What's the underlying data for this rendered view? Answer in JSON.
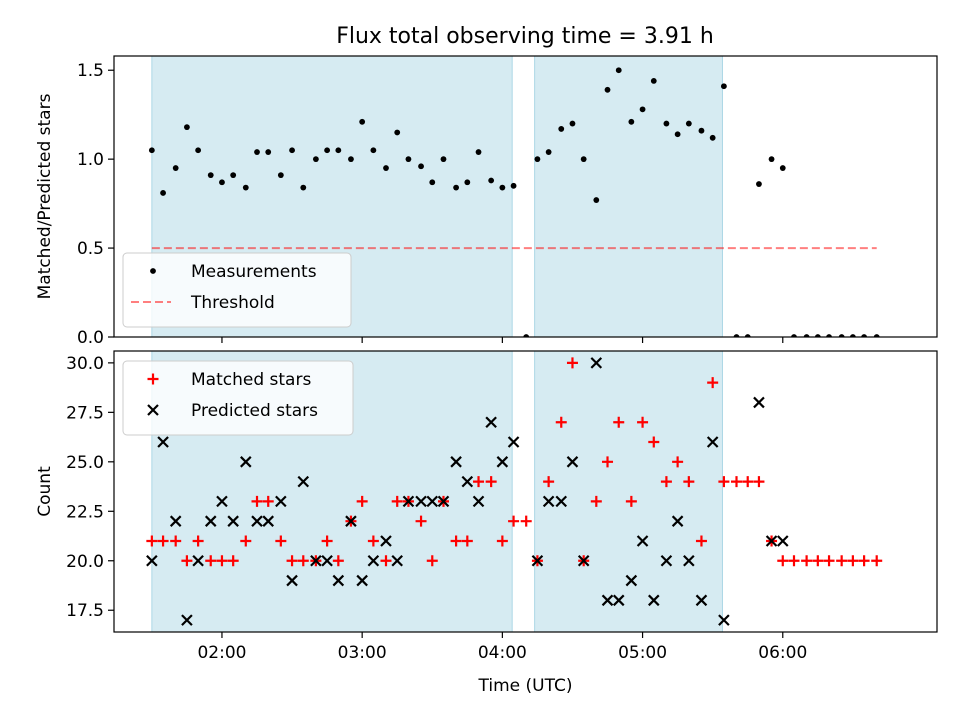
{
  "title": "Flux total observing time = 3.91 h",
  "colors": {
    "observing_band": "#add8e6",
    "measurement": "#000000",
    "threshold": "#ff0000",
    "matched": "#ff0000",
    "predicted": "#000000"
  },
  "chart_data": [
    {
      "type": "scatter",
      "name": "ratio-panel",
      "ylabel": "Matched/Predicted stars",
      "ylim": [
        0,
        1.58
      ],
      "yticks": [
        0.0,
        0.5,
        1.0,
        1.5
      ],
      "ytick_labels": [
        "0.0",
        "0.5",
        "1.0",
        "1.5"
      ],
      "xlim": [
        1.23,
        7.1
      ],
      "xticks": [
        2,
        3,
        4,
        5,
        6
      ],
      "observing_intervals": [
        [
          1.5,
          4.07
        ],
        [
          4.23,
          5.57
        ]
      ],
      "legend": {
        "position": "lower-left",
        "entries": [
          "Measurements",
          "Threshold"
        ]
      },
      "threshold": {
        "name": "Threshold",
        "value": 0.5,
        "x_range": [
          1.5,
          6.67
        ]
      },
      "series": [
        {
          "name": "Measurements",
          "x": [
            1.5,
            1.58,
            1.67,
            1.75,
            1.83,
            1.92,
            2.0,
            2.08,
            2.17,
            2.25,
            2.33,
            2.42,
            2.5,
            2.58,
            2.67,
            2.75,
            2.83,
            2.92,
            3.0,
            3.08,
            3.17,
            3.25,
            3.33,
            3.42,
            3.5,
            3.58,
            3.67,
            3.75,
            3.83,
            3.92,
            4.0,
            4.08,
            4.17,
            4.25,
            4.33,
            4.42,
            4.5,
            4.58,
            4.67,
            4.75,
            4.83,
            4.92,
            5.0,
            5.08,
            5.17,
            5.25,
            5.33,
            5.42,
            5.5,
            5.58,
            5.67,
            5.75,
            5.83,
            5.92,
            6.0,
            6.08,
            6.17,
            6.25,
            6.33,
            6.42,
            6.5,
            6.58,
            6.67
          ],
          "y": [
            1.05,
            0.81,
            0.95,
            1.18,
            1.05,
            0.91,
            0.87,
            0.91,
            0.84,
            1.04,
            1.04,
            0.91,
            1.05,
            0.84,
            1.0,
            1.05,
            1.05,
            1.0,
            1.21,
            1.05,
            0.95,
            1.15,
            1.0,
            0.96,
            0.87,
            1.0,
            0.84,
            0.87,
            1.04,
            0.88,
            0.84,
            0.85,
            0.0,
            1.0,
            1.04,
            1.17,
            1.2,
            1.0,
            0.77,
            1.39,
            1.5,
            1.21,
            1.28,
            1.44,
            1.2,
            1.14,
            1.2,
            1.16,
            1.12,
            1.41,
            0.0,
            0.0,
            0.86,
            1.0,
            0.95,
            0.0,
            0.0,
            0.0,
            0.0,
            0.0,
            0.0,
            0.0,
            0.0
          ]
        }
      ]
    },
    {
      "type": "scatter",
      "name": "count-panel",
      "xlabel": "Time (UTC)",
      "ylabel": "Count",
      "ylim": [
        16.4,
        30.6
      ],
      "yticks": [
        17.5,
        20.0,
        22.5,
        25.0,
        27.5,
        30.0
      ],
      "ytick_labels": [
        "17.5",
        "20.0",
        "22.5",
        "25.0",
        "27.5",
        "30.0"
      ],
      "xlim": [
        1.23,
        7.1
      ],
      "xticks": [
        2,
        3,
        4,
        5,
        6
      ],
      "xtick_labels": [
        "02:00",
        "03:00",
        "04:00",
        "05:00",
        "06:00"
      ],
      "observing_intervals": [
        [
          1.5,
          4.07
        ],
        [
          4.23,
          5.57
        ]
      ],
      "legend": {
        "position": "upper-left",
        "entries": [
          "Matched stars",
          "Predicted stars"
        ]
      },
      "series": [
        {
          "name": "Matched stars",
          "marker": "plus",
          "x": [
            1.5,
            1.58,
            1.67,
            1.75,
            1.83,
            1.92,
            2.0,
            2.08,
            2.17,
            2.25,
            2.33,
            2.42,
            2.5,
            2.58,
            2.67,
            2.75,
            2.83,
            2.92,
            3.0,
            3.08,
            3.17,
            3.25,
            3.33,
            3.42,
            3.5,
            3.58,
            3.67,
            3.75,
            3.83,
            3.92,
            4.0,
            4.08,
            4.17,
            4.25,
            4.33,
            4.42,
            4.5,
            4.58,
            4.67,
            4.75,
            4.83,
            4.92,
            5.0,
            5.08,
            5.17,
            5.25,
            5.33,
            5.42,
            5.5,
            5.58,
            5.67,
            5.75,
            5.83,
            5.92,
            6.0,
            6.08,
            6.17,
            6.25,
            6.33,
            6.42,
            6.5,
            6.58,
            6.67
          ],
          "y": [
            21,
            21,
            21,
            20,
            21,
            20,
            20,
            20,
            21,
            23,
            23,
            21,
            20,
            20,
            20,
            21,
            20,
            22,
            23,
            21,
            20,
            23,
            23,
            22,
            20,
            23,
            21,
            21,
            24,
            24,
            21,
            22,
            22,
            20,
            24,
            27,
            30,
            20,
            23,
            25,
            27,
            23,
            27,
            26,
            24,
            25,
            24,
            21,
            29,
            24,
            24,
            24,
            24,
            21,
            20,
            20,
            20,
            20,
            20,
            20,
            20,
            20,
            20
          ]
        },
        {
          "name": "Predicted stars",
          "marker": "x",
          "x": [
            1.5,
            1.58,
            1.67,
            1.75,
            1.83,
            1.92,
            2.0,
            2.08,
            2.17,
            2.25,
            2.33,
            2.42,
            2.5,
            2.58,
            2.67,
            2.75,
            2.83,
            2.92,
            3.0,
            3.08,
            3.17,
            3.25,
            3.33,
            3.42,
            3.5,
            3.58,
            3.67,
            3.75,
            3.83,
            3.92,
            4.0,
            4.08,
            4.25,
            4.33,
            4.42,
            4.5,
            4.58,
            4.67,
            4.75,
            4.83,
            4.92,
            5.0,
            5.08,
            5.17,
            5.25,
            5.33,
            5.42,
            5.5,
            5.58,
            5.83,
            5.92,
            6.0
          ],
          "y": [
            20,
            26,
            22,
            17,
            20,
            22,
            23,
            22,
            25,
            22,
            22,
            23,
            19,
            24,
            20,
            20,
            19,
            22,
            19,
            20,
            21,
            20,
            23,
            23,
            23,
            23,
            25,
            24,
            23,
            27,
            25,
            26,
            20,
            23,
            23,
            25,
            20,
            30,
            18,
            18,
            19,
            21,
            18,
            20,
            22,
            20,
            18,
            26,
            17,
            28,
            21,
            21
          ]
        }
      ]
    }
  ]
}
